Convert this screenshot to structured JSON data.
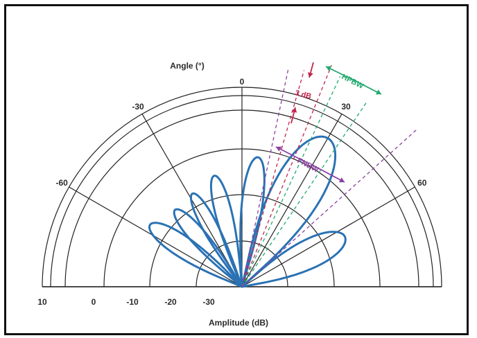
{
  "title": "",
  "angle_axis": {
    "label": "Angle (°)",
    "ticks": [
      {
        "deg": -60,
        "text": "-60"
      },
      {
        "deg": -30,
        "text": "-30"
      },
      {
        "deg": 0,
        "text": "0"
      },
      {
        "deg": 30,
        "text": "30"
      },
      {
        "deg": 60,
        "text": "60"
      }
    ]
  },
  "amplitude_axis": {
    "label": "Amplitude (dB)",
    "ticks": [
      "10",
      "0",
      "-10",
      "-20",
      "-30"
    ]
  },
  "annotations": {
    "three_db": "3 dB",
    "hpbw": "HPBW",
    "fnbw": "FNBW"
  },
  "colors": {
    "pattern": "#2a72b4",
    "grid": "#222222",
    "hpbw": "#22a86e",
    "fnbw": "#8a3fa0",
    "three_db": "#c0264c"
  },
  "pattern_lobes": [
    {
      "name": "main-lobe",
      "center_deg": 30,
      "width_deg": 18,
      "level": 0.96
    },
    {
      "name": "side-lobe-1",
      "center_deg": 64,
      "width_deg": 16,
      "level": 0.64
    },
    {
      "name": "side-lobe-2",
      "center_deg": -56,
      "width_deg": 12,
      "level": 0.62
    },
    {
      "name": "side-lobe-3",
      "center_deg": -41,
      "width_deg": 10,
      "level": 0.57
    },
    {
      "name": "side-lobe-4",
      "center_deg": -28,
      "width_deg": 9,
      "level": 0.59
    },
    {
      "name": "side-lobe-5",
      "center_deg": -14,
      "width_deg": 9,
      "level": 0.64
    },
    {
      "name": "side-lobe-6",
      "center_deg": 7,
      "width_deg": 10,
      "level": 0.73
    }
  ]
}
